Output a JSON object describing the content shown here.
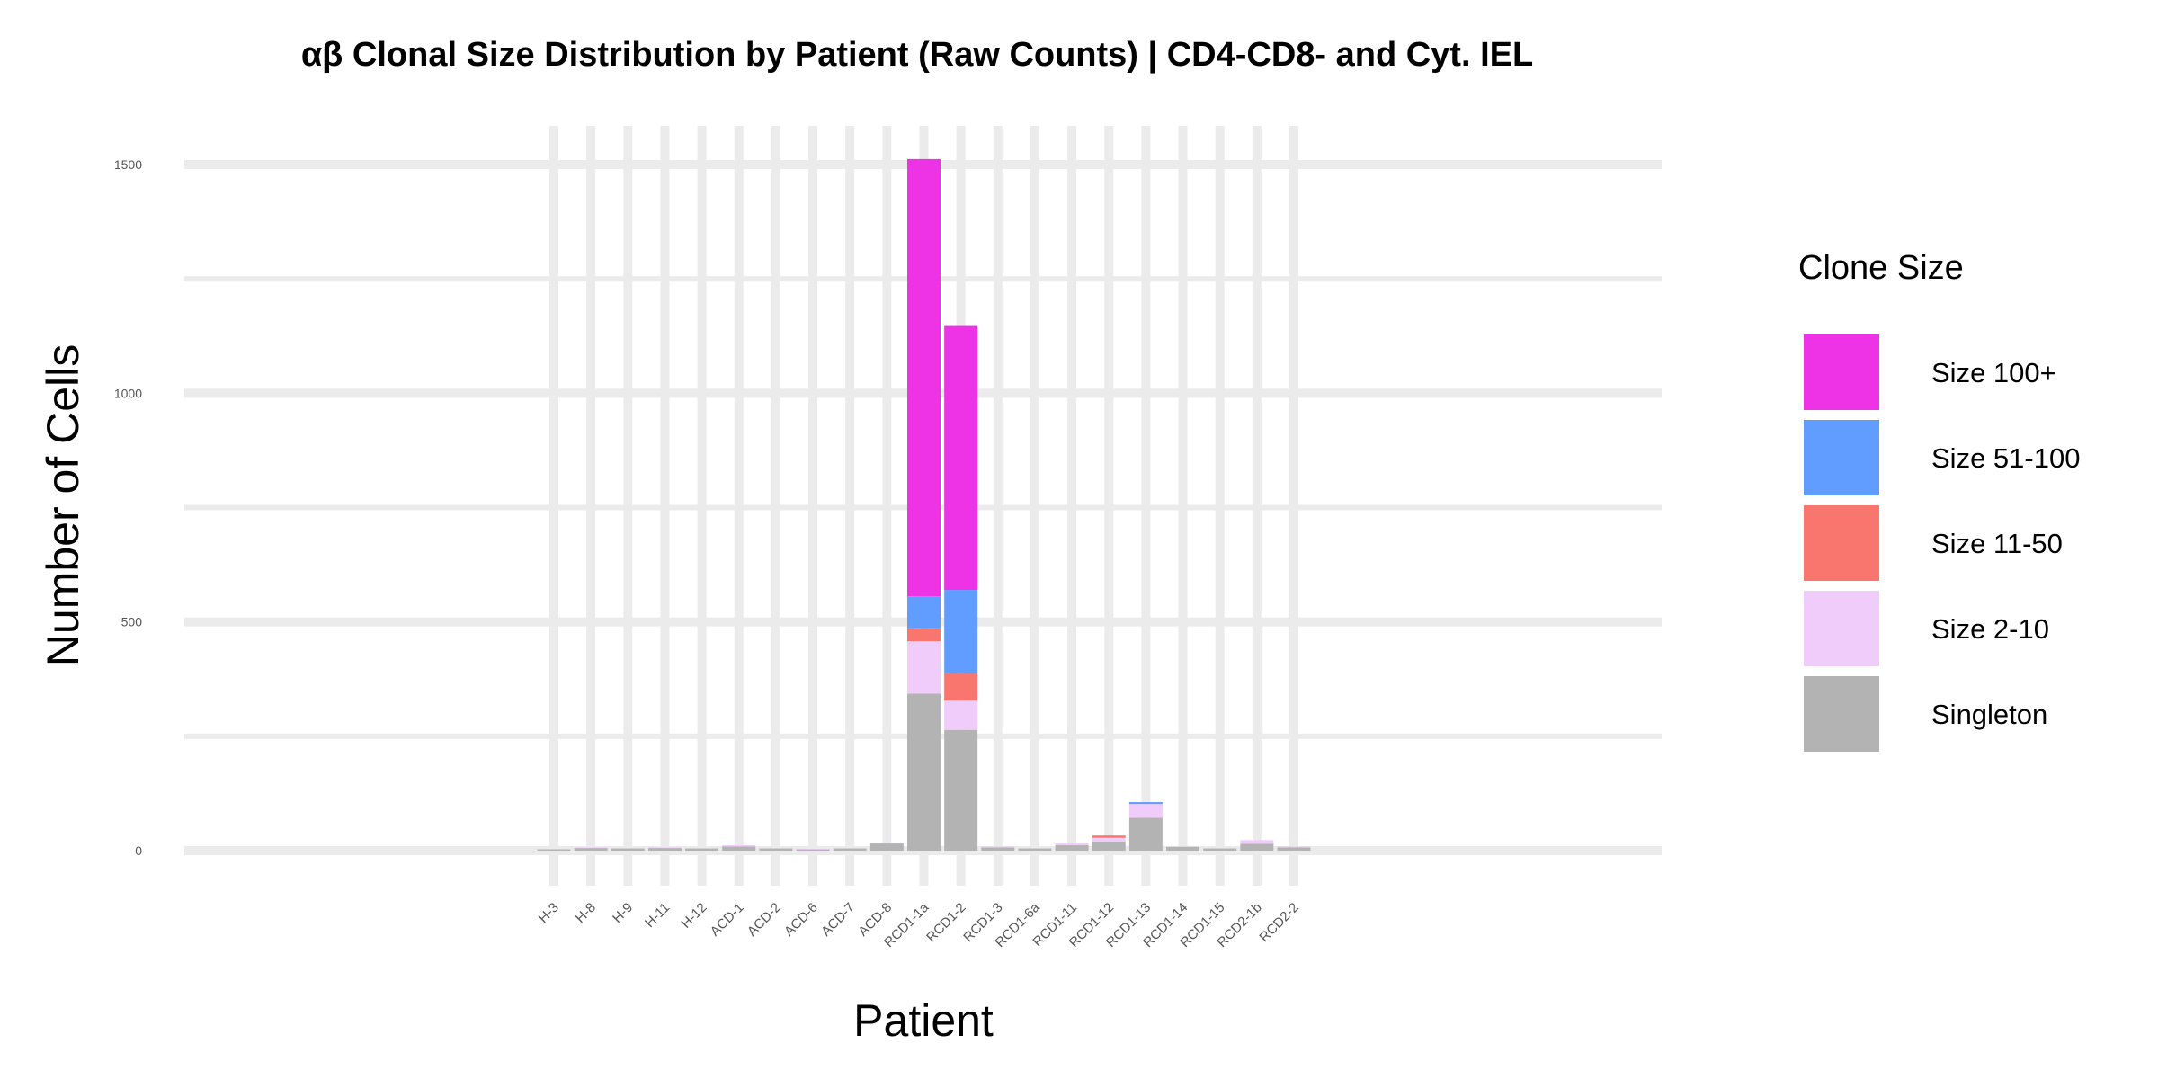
{
  "chart_data": {
    "type": "bar",
    "stacked": true,
    "title": "αβ Clonal Size Distribution by Patient (Raw Counts) | CD4-CD8- and Cyt. IEL",
    "xlabel": "Patient",
    "ylabel": "Number of Cells",
    "ylim": [
      0,
      1590
    ],
    "yticks": [
      0,
      500,
      1000,
      1500
    ],
    "grid": true,
    "legend_title": "Clone Size",
    "legend_position": "right",
    "categories": [
      "H-3",
      "H-8",
      "H-9",
      "H-11",
      "H-12",
      "ACD-1",
      "ACD-2",
      "ACD-6",
      "ACD-7",
      "ACD-8",
      "RCD1-1a",
      "RCD1-2",
      "RCD1-3",
      "RCD1-6a",
      "RCD1-11",
      "RCD1-12",
      "RCD1-13",
      "RCD1-14",
      "RCD1-15",
      "RCD2-1b",
      "RCD2-2"
    ],
    "series": [
      {
        "name": "Singleton",
        "color": "#b3b3b3",
        "values": [
          3,
          6,
          5,
          6,
          5,
          9,
          5,
          3,
          5,
          16,
          343,
          264,
          7,
          5,
          12,
          20,
          72,
          8,
          5,
          15,
          7
        ]
      },
      {
        "name": "Size 2-10",
        "color": "#f0ccfa",
        "values": [
          0,
          1,
          1,
          1,
          1,
          3,
          1,
          1,
          1,
          1,
          115,
          64,
          2,
          1,
          4,
          8,
          30,
          2,
          1,
          8,
          2
        ]
      },
      {
        "name": "Size 11-50",
        "color": "#f8766d",
        "values": [
          0,
          0,
          0,
          0,
          0,
          0,
          0,
          0,
          0,
          0,
          28,
          60,
          0,
          0,
          0,
          5,
          0,
          0,
          0,
          0,
          0
        ]
      },
      {
        "name": "Size 51-100",
        "color": "#619cff",
        "values": [
          0,
          0,
          0,
          0,
          0,
          0,
          0,
          0,
          0,
          0,
          70,
          182,
          0,
          0,
          0,
          0,
          4,
          0,
          0,
          0,
          0
        ]
      },
      {
        "name": "Size 100+",
        "color": "#ee33e6",
        "values": [
          0,
          0,
          0,
          0,
          0,
          0,
          0,
          0,
          0,
          0,
          956,
          577,
          0,
          0,
          0,
          0,
          0,
          0,
          0,
          0,
          0
        ]
      }
    ],
    "legend_order": [
      "Size 100+",
      "Size 51-100",
      "Size 11-50",
      "Size 2-10",
      "Singleton"
    ]
  }
}
